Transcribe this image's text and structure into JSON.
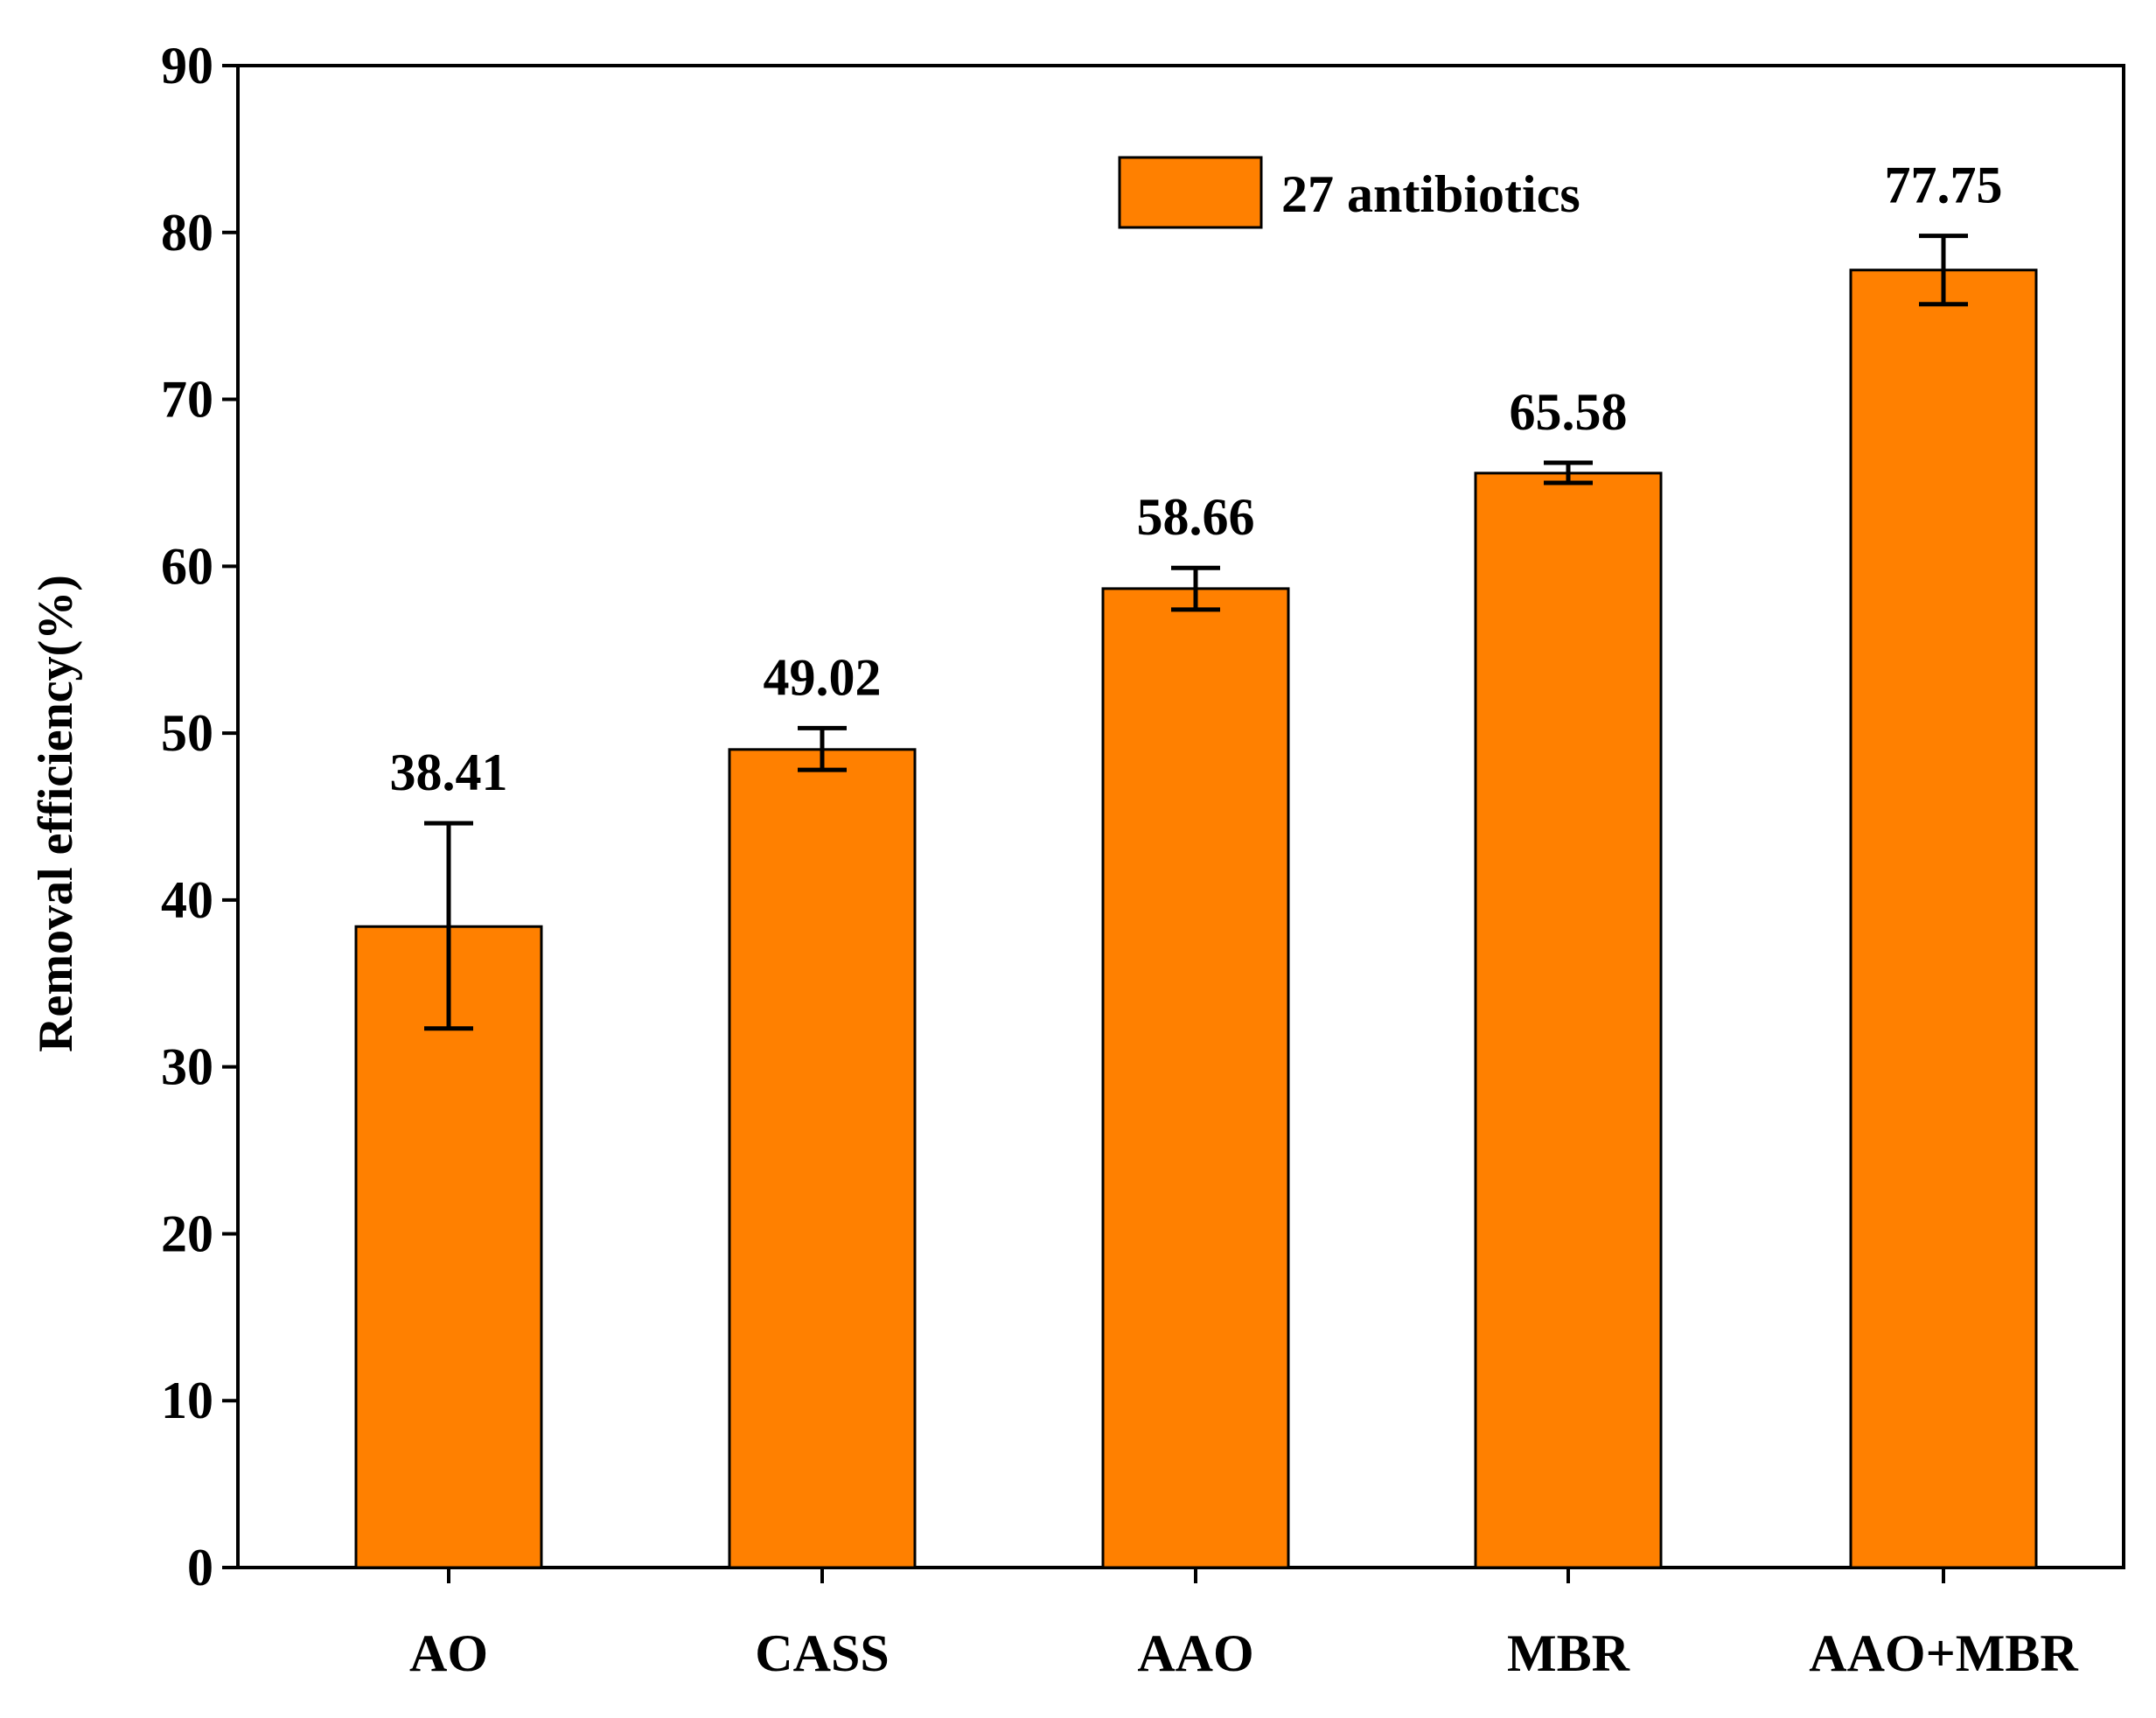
{
  "chart_data": {
    "type": "bar",
    "title": "",
    "xlabel": "",
    "ylabel": "Removal efficiency(%)",
    "ylim": [
      0,
      90
    ],
    "yticks": [
      0,
      10,
      20,
      30,
      40,
      50,
      60,
      70,
      80,
      90
    ],
    "categories": [
      "AO",
      "CASS",
      "AAO",
      "MBR",
      "AAO+MBR"
    ],
    "series": [
      {
        "name": "27 antibiotics",
        "values": [
          38.41,
          49.02,
          58.66,
          65.58,
          77.75
        ],
        "labels": [
          "38.41",
          "49.02",
          "58.66",
          "65.58",
          "77.75"
        ],
        "error_low": [
          32.3,
          47.8,
          57.4,
          65.0,
          75.7
        ],
        "error_high": [
          44.6,
          50.3,
          59.9,
          66.2,
          79.8
        ]
      }
    ],
    "legend_position": "top-right",
    "grid": false,
    "bar_color": "#FF8000"
  }
}
